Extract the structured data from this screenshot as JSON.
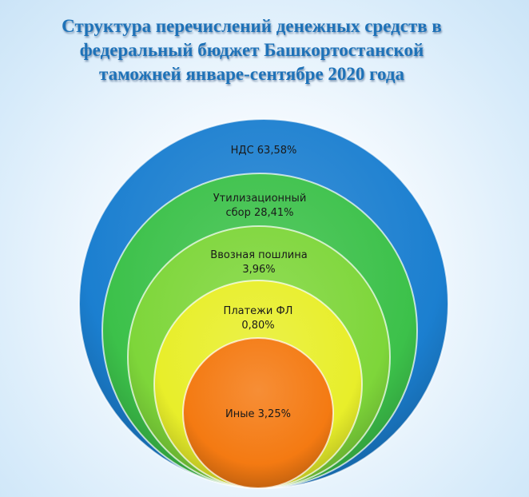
{
  "title": {
    "lines": [
      "Структура перечислений денежных средств в",
      "федеральный бюджет Башкортостанской",
      "таможней январе-сентябре 2020 года"
    ],
    "color": "#1e72b8"
  },
  "segments": [
    {
      "label_lines": [
        "НДС 63,58%"
      ],
      "name": "НДС",
      "value": 63.58,
      "color": "#1b7fd0"
    },
    {
      "label_lines": [
        "Утилизационный",
        "сбор 28,41%"
      ],
      "name": "Утилизационный сбор",
      "value": 28.41,
      "color": "#3cc14a"
    },
    {
      "label_lines": [
        "Ввозная пошлина",
        "3,96%"
      ],
      "name": "Ввозная пошлина",
      "value": 3.96,
      "color": "#7ed63a"
    },
    {
      "label_lines": [
        "Платежи ФЛ",
        "0,80%"
      ],
      "name": "Платежи ФЛ",
      "value": 0.8,
      "color": "#e8ee2a"
    },
    {
      "label_lines": [
        "Иные 3,25%"
      ],
      "name": "Иные",
      "value": 3.25,
      "color": "#f47a12"
    }
  ]
}
